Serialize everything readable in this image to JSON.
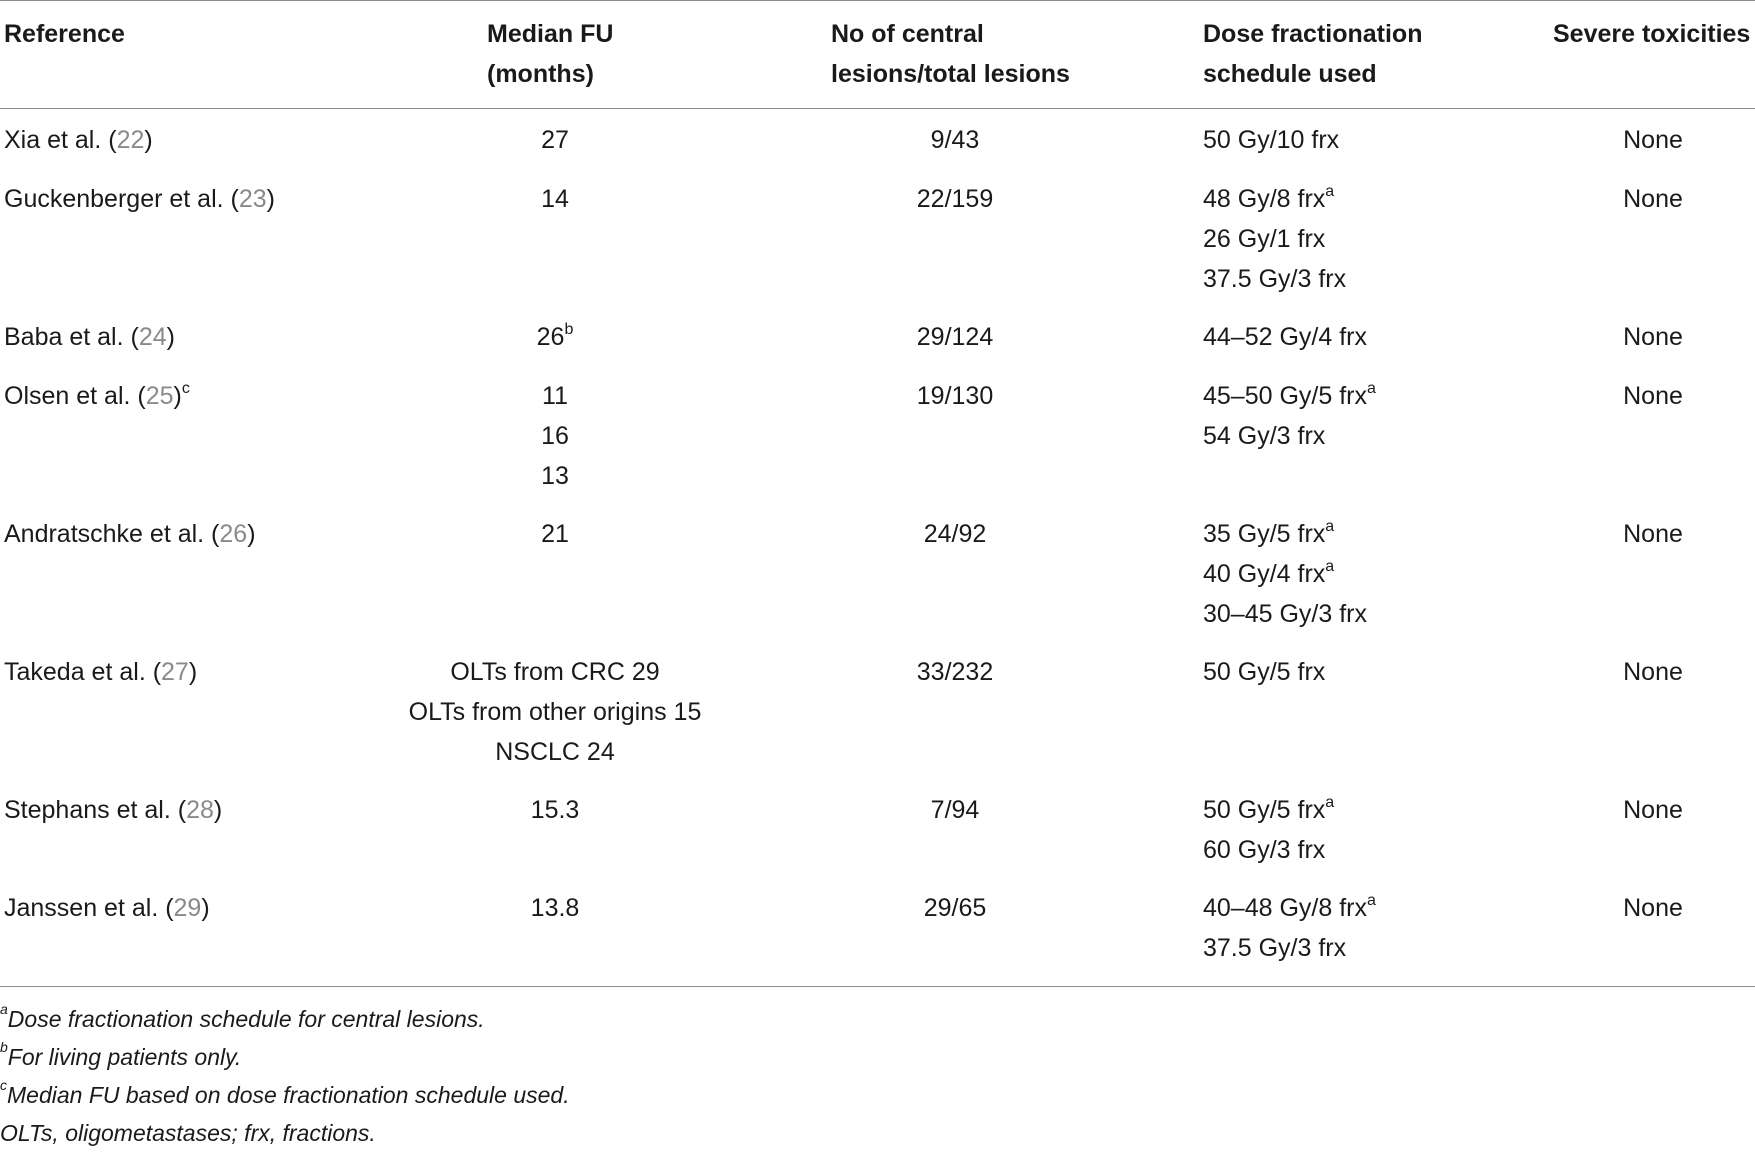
{
  "table": {
    "headers": {
      "reference": "Reference",
      "median_fu": "Median FU\n(months)",
      "lesions": "No of central\nlesions/total lesions",
      "dose": "Dose fractionation\nschedule used",
      "toxicities": "Severe toxicities"
    },
    "rows": [
      {
        "ref_name": "Xia et al. (",
        "ref_num": "22",
        "ref_close": ")",
        "ref_sup": "",
        "fu": [
          "27"
        ],
        "fu_sup": "",
        "lesions": "9/43",
        "dose": [
          {
            "text": "50 Gy/10 frx",
            "sup": ""
          }
        ],
        "toxicity": "None"
      },
      {
        "ref_name": "Guckenberger et al. (",
        "ref_num": "23",
        "ref_close": ")",
        "ref_sup": "",
        "fu": [
          "14"
        ],
        "fu_sup": "",
        "lesions": "22/159",
        "dose": [
          {
            "text": "48 Gy/8 frx",
            "sup": "a"
          },
          {
            "text": "26 Gy/1 frx",
            "sup": ""
          },
          {
            "text": "37.5 Gy/3 frx",
            "sup": ""
          }
        ],
        "toxicity": "None"
      },
      {
        "ref_name": "Baba et al. (",
        "ref_num": "24",
        "ref_close": ")",
        "ref_sup": "",
        "fu": [
          "26"
        ],
        "fu_sup": "b",
        "lesions": "29/124",
        "dose": [
          {
            "text": "44–52 Gy/4 frx",
            "sup": ""
          }
        ],
        "toxicity": "None"
      },
      {
        "ref_name": "Olsen et al. (",
        "ref_num": "25",
        "ref_close": ")",
        "ref_sup": "c",
        "fu": [
          "11",
          "16",
          "13"
        ],
        "fu_sup": "",
        "lesions": "19/130",
        "dose": [
          {
            "text": "45–50 Gy/5 frx",
            "sup": "a"
          },
          {
            "text": "54 Gy/3 frx",
            "sup": ""
          }
        ],
        "toxicity": "None"
      },
      {
        "ref_name": "Andratschke et al. (",
        "ref_num": "26",
        "ref_close": ")",
        "ref_sup": "",
        "fu": [
          "21"
        ],
        "fu_sup": "",
        "lesions": "24/92",
        "dose": [
          {
            "text": "35 Gy/5 frx",
            "sup": "a"
          },
          {
            "text": "40 Gy/4 frx",
            "sup": "a"
          },
          {
            "text": "30–45 Gy/3 frx",
            "sup": ""
          }
        ],
        "toxicity": "None"
      },
      {
        "ref_name": "Takeda et al. (",
        "ref_num": "27",
        "ref_close": ")",
        "ref_sup": "",
        "fu": [
          "OLTs from CRC 29",
          "OLTs from other origins 15",
          "NSCLC 24"
        ],
        "fu_sup": "",
        "lesions": "33/232",
        "dose": [
          {
            "text": "50 Gy/5 frx",
            "sup": ""
          }
        ],
        "toxicity": "None"
      },
      {
        "ref_name": "Stephans et al. (",
        "ref_num": "28",
        "ref_close": ")",
        "ref_sup": "",
        "fu": [
          "15.3"
        ],
        "fu_sup": "",
        "lesions": "7/94",
        "dose": [
          {
            "text": "50 Gy/5 frx",
            "sup": "a"
          },
          {
            "text": "60 Gy/3 frx",
            "sup": ""
          }
        ],
        "toxicity": "None"
      },
      {
        "ref_name": "Janssen et al. (",
        "ref_num": "29",
        "ref_close": ")",
        "ref_sup": "",
        "fu": [
          "13.8"
        ],
        "fu_sup": "",
        "lesions": "29/65",
        "dose": [
          {
            "text": "40–48 Gy/8 frx",
            "sup": "a"
          },
          {
            "text": "37.5 Gy/3 frx",
            "sup": ""
          }
        ],
        "toxicity": "None"
      }
    ]
  },
  "footnotes": [
    {
      "mark": "a",
      "text": "Dose fractionation schedule for central lesions."
    },
    {
      "mark": "b",
      "text": "For living patients only."
    },
    {
      "mark": "c",
      "text": "Median FU based on dose fractionation schedule used."
    },
    {
      "mark": "",
      "text": "OLTs, oligometastases; frx, fractions."
    }
  ]
}
